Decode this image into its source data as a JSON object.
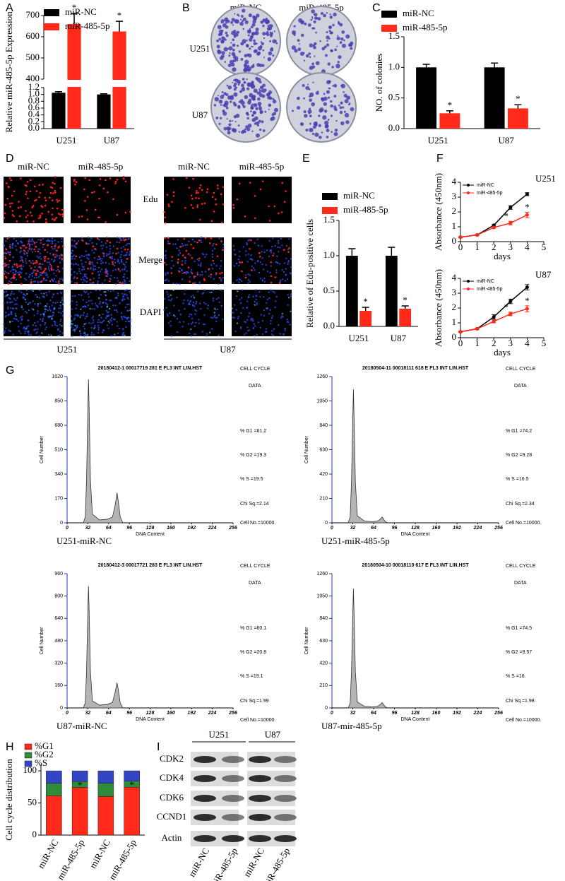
{
  "chart_data": [
    {
      "panel": "A",
      "type": "bar",
      "ylabel": "Relative miR-485-5p Expression",
      "categories": [
        "U251",
        "U87"
      ],
      "series": [
        {
          "name": "miR-NC",
          "color": "#000000",
          "values": [
            1.05,
            1.0
          ],
          "errors": [
            0.03,
            0.02
          ]
        },
        {
          "name": "miR-485-5p",
          "color": "#ff2a1a",
          "values": [
            660,
            625
          ],
          "errors": [
            50,
            48
          ],
          "annotations": [
            "*",
            "*"
          ]
        }
      ],
      "ylim": [
        0,
        700
      ],
      "axis_break": [
        1.2,
        400
      ],
      "yticks": [
        {
          "value": 0,
          "label": "0.0"
        },
        0.2,
        0.4,
        0.6,
        0.8,
        {
          "value": 1,
          "label": "1.0"
        },
        1.2,
        400,
        500,
        600,
        700
      ]
    },
    {
      "panel": "C",
      "type": "bar",
      "ylabel": "NO. of colonies",
      "categories": [
        "U251",
        "U87"
      ],
      "series": [
        {
          "name": "miR-NC",
          "color": "#000000",
          "values": [
            1.0,
            1.0
          ],
          "errors": [
            0.05,
            0.07
          ]
        },
        {
          "name": "miR-485-5p",
          "color": "#ff2a1a",
          "values": [
            0.25,
            0.33
          ],
          "errors": [
            0.04,
            0.06
          ],
          "annotations": [
            "*",
            "*"
          ]
        }
      ],
      "ylim": [
        0,
        1.5
      ],
      "yticks": [
        {
          "value": 0,
          "label": "0.0"
        },
        {
          "value": 0.5,
          "label": "0.5"
        },
        {
          "value": 1,
          "label": "1.0"
        },
        {
          "value": 1.5,
          "label": "1.5"
        }
      ]
    },
    {
      "panel": "E",
      "type": "bar",
      "ylabel": "Relative of Edu-positive cells",
      "categories": [
        "U251",
        "U87"
      ],
      "series": [
        {
          "name": "miR-NC",
          "color": "#000000",
          "values": [
            1.0,
            1.0
          ],
          "errors": [
            0.1,
            0.12
          ]
        },
        {
          "name": "miR-485-5p",
          "color": "#ff2a1a",
          "values": [
            0.22,
            0.25
          ],
          "errors": [
            0.05,
            0.04
          ],
          "annotations": [
            "*",
            "*"
          ]
        }
      ],
      "ylim": [
        0,
        1.5
      ],
      "yticks": [
        {
          "value": 0,
          "label": "0.0"
        },
        {
          "value": 0.5,
          "label": "0.5"
        },
        {
          "value": 1,
          "label": "1.0"
        },
        {
          "value": 1.5,
          "label": "1.5"
        }
      ]
    },
    {
      "panel": "F",
      "type": "line",
      "title": "U251",
      "xlabel": "days",
      "ylabel": "Absorbance (450nm)",
      "x": [
        0,
        1,
        2,
        3,
        4
      ],
      "series": [
        {
          "name": "miR-NC",
          "color": "#000000",
          "values": [
            0.3,
            0.45,
            1.1,
            2.3,
            3.2
          ],
          "errors": [
            0.03,
            0.03,
            0.05,
            0.12,
            0.1
          ]
        },
        {
          "name": "miR-485-5p",
          "color": "#ff2a1a",
          "values": [
            0.3,
            0.45,
            0.95,
            1.25,
            1.8
          ],
          "errors": [
            0.03,
            0.03,
            0.05,
            0.12,
            0.18
          ],
          "annotations": [
            null,
            null,
            null,
            "*",
            "*"
          ]
        }
      ],
      "xlim": [
        0,
        5
      ],
      "xticks": [
        0,
        1,
        2,
        3,
        4,
        5
      ],
      "ylim": [
        0,
        4
      ],
      "yticks": [
        0,
        1,
        2,
        3,
        4
      ]
    },
    {
      "type": "line",
      "title": "U87",
      "xlabel": "days",
      "ylabel": "Absorbance (450nm)",
      "x": [
        0,
        1,
        2,
        3,
        4
      ],
      "series": [
        {
          "name": "miR-NC",
          "color": "#000000",
          "values": [
            0.4,
            0.6,
            1.4,
            2.45,
            3.4
          ],
          "errors": [
            0.03,
            0.05,
            0.15,
            0.15,
            0.18
          ]
        },
        {
          "name": "miR-485-5p",
          "color": "#ff2a1a",
          "values": [
            0.4,
            0.6,
            1.1,
            1.6,
            1.95
          ],
          "errors": [
            0.03,
            0.05,
            0.1,
            0.12,
            0.2
          ],
          "annotations": [
            null,
            null,
            null,
            "*",
            "*"
          ]
        }
      ],
      "xlim": [
        0,
        5
      ],
      "xticks": [
        0,
        1,
        2,
        3,
        4,
        5
      ],
      "ylim": [
        0,
        4
      ],
      "yticks": [
        0,
        1,
        2,
        3,
        4
      ]
    },
    {
      "panel": "G",
      "type": "area",
      "title": "20180412-1 00017719 281 E FL3 INT LIN.HST",
      "xlabel": "DNA Content",
      "ylabel": "Cell Number",
      "caption": "U251-miR-NC",
      "side_text": [
        "CELL CYCLE",
        "DATA"
      ],
      "stats": [
        "% G1 =61.2",
        "% G2 =19.3",
        "% S  =19.5",
        "Chi Sq.=2.14",
        "Cell No.=10000."
      ],
      "color": "#b4b4b4",
      "x": [
        25,
        28,
        30,
        32,
        33,
        34,
        36,
        39,
        50,
        62,
        70,
        74,
        77,
        79,
        82,
        86
      ],
      "values": [
        0,
        40,
        300,
        800,
        1000,
        800,
        300,
        60,
        20,
        25,
        40,
        120,
        210,
        150,
        40,
        0
      ],
      "xlim": [
        0,
        256
      ],
      "xticks": [
        0,
        32,
        64,
        96,
        128,
        160,
        192,
        224,
        256
      ],
      "ylim": [
        0,
        1020
      ],
      "yticks": [
        0,
        170,
        340,
        510,
        680,
        850,
        1020
      ]
    },
    {
      "type": "area",
      "title": "20180504-11 00018111 618 E FL3 INT LIN.HST",
      "xlabel": "DNA Content",
      "ylabel": "Cell Number",
      "caption": "U251-miR-485-5p",
      "side_text": [
        "CELL CYCLE",
        "DATA"
      ],
      "stats": [
        "% G1 =74.2",
        "% G2 =9.28",
        "% S  =16.5",
        "Chi Sq.=2.34",
        "Cell No.=10000."
      ],
      "color": "#b4b4b4",
      "x": [
        25,
        28,
        30,
        32,
        33,
        34,
        36,
        39,
        50,
        62,
        70,
        74,
        77,
        79,
        82,
        86
      ],
      "values": [
        0,
        50,
        350,
        900,
        1150,
        900,
        350,
        60,
        15,
        10,
        15,
        30,
        50,
        35,
        10,
        0
      ],
      "xlim": [
        0,
        256
      ],
      "xticks": [
        0,
        32,
        64,
        96,
        128,
        160,
        192,
        224,
        256
      ],
      "ylim": [
        0,
        1260
      ],
      "yticks": [
        0,
        210,
        420,
        630,
        840,
        1050,
        1260
      ]
    },
    {
      "type": "area",
      "title": "20180412-3 00017721 283 E FL3 INT LIN.HST",
      "xlabel": "DNA Content",
      "ylabel": "Cell Number",
      "caption": "U87-miR-NC",
      "side_text": [
        "CELL CYCLE",
        "DATA"
      ],
      "stats": [
        "% G1 =60.1",
        "% G2 =20.8",
        "% S  =19.1",
        "Chi Sq.=1.99",
        "Cell No.=10000."
      ],
      "color": "#b4b4b4",
      "x": [
        25,
        28,
        30,
        32,
        33,
        34,
        36,
        39,
        50,
        62,
        70,
        74,
        77,
        79,
        82,
        86
      ],
      "values": [
        0,
        35,
        260,
        700,
        870,
        700,
        260,
        50,
        20,
        25,
        40,
        110,
        180,
        130,
        35,
        0
      ],
      "xlim": [
        0,
        256
      ],
      "xticks": [
        0,
        32,
        64,
        96,
        128,
        160,
        192,
        224,
        256
      ],
      "ylim": [
        0,
        960
      ],
      "yticks": [
        0,
        160,
        320,
        480,
        640,
        800,
        960
      ]
    },
    {
      "type": "area",
      "title": "20180504-10 00018110 617 E FL3 INT LIN.HST",
      "xlabel": "DNA Content",
      "ylabel": "Cell Number",
      "caption": "U87-mir-485-5p",
      "side_text": [
        "CELL CYCLE",
        "DATA"
      ],
      "stats": [
        "% G1 =74.5",
        "% G2 =9.57",
        "% S  =16.",
        "Chi Sq.=1.98",
        "Cell No.=10000."
      ],
      "color": "#b4b4b4",
      "x": [
        25,
        28,
        30,
        32,
        33,
        34,
        36,
        39,
        50,
        62,
        70,
        74,
        77,
        79,
        82,
        86
      ],
      "values": [
        0,
        45,
        340,
        880,
        1120,
        880,
        340,
        55,
        15,
        10,
        15,
        30,
        50,
        35,
        10,
        0
      ],
      "xlim": [
        0,
        256
      ],
      "xticks": [
        0,
        32,
        64,
        96,
        128,
        160,
        192,
        224,
        256
      ],
      "ylim": [
        0,
        1260
      ],
      "yticks": [
        0,
        210,
        420,
        630,
        840,
        1050,
        1260
      ]
    },
    {
      "panel": "H",
      "type": "stacked_bar",
      "ylabel": "Cell cycle distribution",
      "categories": [
        "miR-NC",
        "miR-485-5p",
        "miR-NC",
        "miR-485-5p"
      ],
      "series": [
        {
          "name": "%G1",
          "color": "#ff2a1a",
          "values": [
            61.2,
            74.2,
            60.1,
            74.5
          ]
        },
        {
          "name": "%G2",
          "color": "#2e8b3a",
          "values": [
            19.3,
            9.28,
            20.8,
            9.57
          ],
          "annotations": [
            null,
            "*",
            null,
            "*"
          ]
        },
        {
          "name": "%S",
          "color": "#3344c4",
          "values": [
            19.5,
            16.5,
            19.1,
            16
          ]
        }
      ],
      "ylim": [
        0,
        110
      ],
      "yticks": [
        0,
        50,
        100
      ]
    }
  ],
  "plates": {
    "panel": "B",
    "columns": [
      "miR-NC",
      "miR-485-5p"
    ],
    "rows": [
      "U251",
      "U87"
    ]
  },
  "edu_images": {
    "panel": "D",
    "rows": [
      "Edu",
      "Merge",
      "DAPI"
    ],
    "groups": [
      {
        "name": "U251",
        "columns": [
          "miR-NC",
          "miR-485-5p"
        ]
      },
      {
        "name": "U87",
        "columns": [
          "miR-NC",
          "miR-485-5p"
        ]
      }
    ]
  },
  "western_blot": {
    "panel": "I",
    "groups": [
      "U251",
      "U87"
    ],
    "proteins": [
      "CDK2",
      "CDK4",
      "CDK6",
      "CCND1",
      "Actin"
    ],
    "lanes": [
      "miR-NC",
      "miR-485-5p",
      "miR-NC",
      "miR-485-5p"
    ]
  }
}
